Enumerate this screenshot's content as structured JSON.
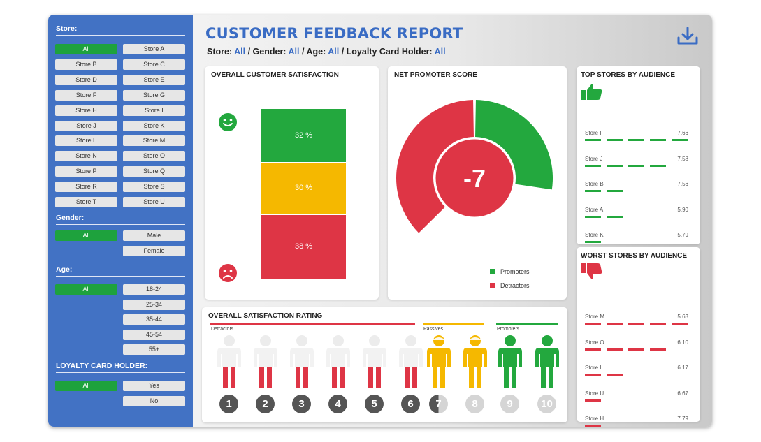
{
  "sidebar": {
    "store": {
      "title": "Store:",
      "options": [
        "All",
        "Store A",
        "Store B",
        "Store C",
        "Store D",
        "Store E",
        "Store F",
        "Store G",
        "Store H",
        "Store I",
        "Store J",
        "Store K",
        "Store L",
        "Store M",
        "Store N",
        "Store O",
        "Store P",
        "Store Q",
        "Store R",
        "Store S",
        "Store T",
        "Store U"
      ]
    },
    "gender": {
      "title": "Gender:",
      "options": [
        "All",
        "Male",
        "Female"
      ]
    },
    "age": {
      "title": "Age:",
      "options": [
        "All",
        "18-24",
        "25-34",
        "35-44",
        "45-54",
        "55+"
      ]
    },
    "loyalty": {
      "title": "LOYALTY CARD HOLDER:",
      "options": [
        "All",
        "Yes",
        "No"
      ]
    }
  },
  "header": {
    "title": "CUSTOMER FEEDBACK REPORT",
    "filters": [
      {
        "label": "Store:",
        "value": "All"
      },
      {
        "label": "Gender:",
        "value": "All"
      },
      {
        "label": "Age:",
        "value": "All"
      },
      {
        "label": "Loyalty Card Holder:",
        "value": "All"
      }
    ],
    "download_icon": "download-icon"
  },
  "satisfaction": {
    "title": "OVERALL CUSTOMER SATISFACTION",
    "segments": [
      {
        "label": "32 %",
        "value": 32,
        "color": "#23a83e"
      },
      {
        "label": "30 %",
        "value": 30,
        "color": "#f5b800"
      },
      {
        "label": "38 %",
        "value": 38,
        "color": "#de3545"
      }
    ],
    "happy_icon": "smiley-happy-icon",
    "sad_icon": "smiley-sad-icon"
  },
  "nps": {
    "title": "NET PROMOTER SCORE",
    "score": "-7",
    "promoters_share": 0.32,
    "detractors_share": 0.38,
    "legend": [
      {
        "label": "Promoters",
        "color": "#23a83e"
      },
      {
        "label": "Detractors",
        "color": "#de3545"
      }
    ]
  },
  "top_stores": {
    "title": "TOP STORES BY AUDIENCE",
    "icon": "thumbs-up-icon",
    "items": [
      {
        "name": "Store F",
        "score": "7.66",
        "level": 5
      },
      {
        "name": "Store J",
        "score": "7.58",
        "level": 4
      },
      {
        "name": "Store B",
        "score": "7.56",
        "level": 2
      },
      {
        "name": "Store A",
        "score": "5.90",
        "level": 2
      },
      {
        "name": "Store K",
        "score": "5.79",
        "level": 1
      }
    ]
  },
  "worst_stores": {
    "title": "WORST STORES BY AUDIENCE",
    "icon": "thumbs-down-icon",
    "items": [
      {
        "name": "Store M",
        "score": "5.63",
        "level": 5
      },
      {
        "name": "Store O",
        "score": "6.10",
        "level": 4
      },
      {
        "name": "Store I",
        "score": "6.17",
        "level": 2
      },
      {
        "name": "Store U",
        "score": "6.67",
        "level": 1
      },
      {
        "name": "Store H",
        "score": "7.79",
        "level": 1
      }
    ]
  },
  "rating": {
    "title": "OVERALL SATISFACTION RATING",
    "categories": [
      {
        "label": "Detractors",
        "color": "#de3545"
      },
      {
        "label": "Passives",
        "color": "#f5b800"
      },
      {
        "label": "Promoters",
        "color": "#23a83e"
      }
    ],
    "numbers": [
      "1",
      "2",
      "3",
      "4",
      "5",
      "6",
      "7",
      "8",
      "9",
      "10"
    ]
  }
}
